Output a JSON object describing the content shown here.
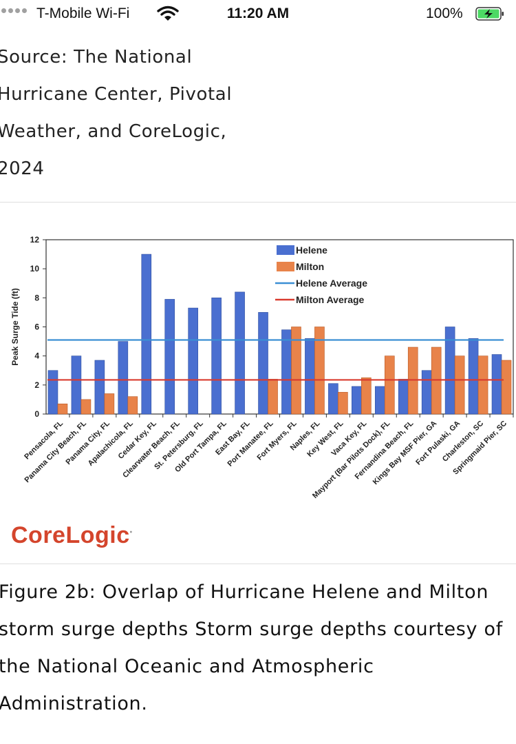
{
  "status_bar": {
    "carrier": "T-Mobile Wi-Fi",
    "time": "11:20 AM",
    "battery": "100%"
  },
  "article": {
    "source": "Source: The National Hurricane Center, Pivotal Weather, and CoreLogic, 2024",
    "caption": "Figure 2b: Overlap of Hurricane Helene and Milton storm surge depths Storm surge depths courtesy of the National Oceanic and Atmospheric Administration.",
    "logo": "CoreLogic"
  },
  "chart_data": {
    "type": "bar",
    "title": "",
    "xlabel": "",
    "ylabel": "Peak Surge Tide (ft)",
    "ylim": [
      0,
      12
    ],
    "yticks": [
      0,
      2,
      4,
      6,
      8,
      10,
      12
    ],
    "legend_position": "top-center",
    "categories": [
      "Pensacola, FL",
      "Panama City Beach, FL",
      "Panama City, FL",
      "Apalachicola, FL",
      "Cedar Key, FL",
      "Clearwater Beach, FL",
      "St. Petersburg, FL",
      "Old Port Tampa, FL",
      "East Bay, FL",
      "Port Manatee, FL",
      "Fort Myers, FL",
      "Naples, FL",
      "Key West, FL",
      "Vaca Key, FL",
      "Mayport (Bar Pilots Dock), FL",
      "Fernandina Beach, FL",
      "Kings Bay MSF Pier, GA",
      "Fort Pulaski, GA",
      "Charleston, SC",
      "Springmaid Pier, SC"
    ],
    "series": [
      {
        "name": "Helene",
        "color": "#4a6fd0",
        "values": [
          3.0,
          4.0,
          3.7,
          5.0,
          11.0,
          7.9,
          7.3,
          8.0,
          8.4,
          7.0,
          5.8,
          5.2,
          2.1,
          1.9,
          1.9,
          2.4,
          3.0,
          6.0,
          5.2,
          4.1
        ]
      },
      {
        "name": "Milton",
        "color": "#e8834a",
        "values": [
          0.7,
          1.0,
          1.4,
          1.2,
          null,
          null,
          null,
          null,
          null,
          2.4,
          6.0,
          6.0,
          1.5,
          2.5,
          4.0,
          4.6,
          4.6,
          4.0,
          4.0,
          3.7
        ]
      }
    ],
    "reference_lines": [
      {
        "name": "Helene Average",
        "value": 5.1,
        "color": "#3b8fd4"
      },
      {
        "name": "Milton Average",
        "value": 2.35,
        "color": "#d93a2e"
      }
    ]
  }
}
